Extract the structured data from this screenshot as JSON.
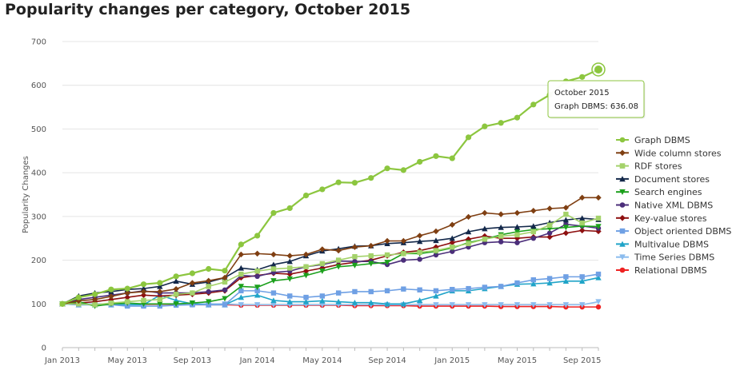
{
  "header": {
    "title": "Popularity changes per category, October 2015"
  },
  "tooltip": {
    "date": "October 2015",
    "text": "Graph DBMS: 636.08"
  },
  "chart_data": {
    "type": "line",
    "title": "Popularity changes per category, October 2015",
    "ylabel": "Popularity Changes",
    "xlabel": "",
    "ylim": [
      0,
      700
    ],
    "y_ticks": [
      0,
      100,
      200,
      300,
      400,
      500,
      600,
      700
    ],
    "x_tick_labels": [
      "Jan 2013",
      "May 2013",
      "Sep 2013",
      "Jan 2014",
      "May 2014",
      "Sep 2014",
      "Jan 2015",
      "May 2015",
      "Sep 2015"
    ],
    "x": [
      "Jan 2013",
      "Feb 2013",
      "Mar 2013",
      "Apr 2013",
      "May 2013",
      "Jun 2013",
      "Jul 2013",
      "Aug 2013",
      "Sep 2013",
      "Oct 2013",
      "Nov 2013",
      "Dec 2013",
      "Jan 2014",
      "Feb 2014",
      "Mar 2014",
      "Apr 2014",
      "May 2014",
      "Jun 2014",
      "Jul 2014",
      "Aug 2014",
      "Sep 2014",
      "Oct 2014",
      "Nov 2014",
      "Dec 2014",
      "Jan 2015",
      "Feb 2015",
      "Mar 2015",
      "Apr 2015",
      "May 2015",
      "Jun 2015",
      "Jul 2015",
      "Aug 2015",
      "Sep 2015",
      "Oct 2015"
    ],
    "grid": true,
    "legend_position": "right",
    "series": [
      {
        "name": "Graph DBMS",
        "color": "#8cc63f",
        "marker": "circle",
        "values": [
          100,
          115,
          122,
          133,
          135,
          145,
          148,
          163,
          170,
          180,
          176,
          236,
          256,
          308,
          319,
          348,
          362,
          378,
          377,
          388,
          410,
          406,
          425,
          438,
          433,
          481,
          506,
          514,
          526,
          556,
          578,
          609,
          619,
          636.08
        ]
      },
      {
        "name": "Wide column stores",
        "color": "#7f3f12",
        "marker": "diamond",
        "values": [
          100,
          107,
          110,
          117,
          125,
          128,
          128,
          134,
          148,
          153,
          160,
          213,
          215,
          213,
          210,
          213,
          225,
          222,
          230,
          233,
          244,
          244,
          256,
          266,
          281,
          299,
          308,
          305,
          308,
          313,
          318,
          320,
          343,
          343
        ]
      },
      {
        "name": "RDF stores",
        "color": "#a4d26a",
        "marker": "square",
        "values": [
          100,
          100,
          98,
          102,
          105,
          108,
          110,
          122,
          125,
          140,
          150,
          168,
          175,
          180,
          182,
          185,
          192,
          200,
          208,
          210,
          212,
          215,
          218,
          222,
          230,
          238,
          248,
          255,
          258,
          265,
          280,
          305,
          285,
          296
        ]
      },
      {
        "name": "Document stores",
        "color": "#13284a",
        "marker": "triangle",
        "values": [
          100,
          118,
          125,
          128,
          133,
          135,
          140,
          152,
          145,
          150,
          160,
          182,
          178,
          190,
          197,
          210,
          221,
          226,
          232,
          233,
          238,
          240,
          243,
          245,
          250,
          265,
          272,
          275,
          276,
          278,
          286,
          292,
          296,
          293
        ]
      },
      {
        "name": "Search engines",
        "color": "#1ca01c",
        "marker": "triangle-down",
        "values": [
          100,
          105,
          95,
          100,
          102,
          100,
          100,
          100,
          102,
          105,
          112,
          140,
          138,
          153,
          157,
          165,
          175,
          185,
          188,
          192,
          195,
          215,
          215,
          220,
          228,
          240,
          248,
          258,
          265,
          270,
          272,
          275,
          278,
          277
        ]
      },
      {
        "name": "Native XML DBMS",
        "color": "#4b2e7a",
        "marker": "circle",
        "values": [
          100,
          110,
          115,
          120,
          125,
          130,
          125,
          125,
          125,
          128,
          132,
          165,
          163,
          172,
          175,
          185,
          190,
          198,
          197,
          197,
          190,
          200,
          202,
          212,
          220,
          230,
          240,
          242,
          240,
          250,
          262,
          282,
          278,
          273
        ]
      },
      {
        "name": "Key-value stores",
        "color": "#8e1010",
        "marker": "diamond",
        "values": [
          100,
          102,
          105,
          110,
          115,
          120,
          118,
          120,
          122,
          125,
          130,
          160,
          165,
          170,
          168,
          175,
          182,
          190,
          195,
          200,
          210,
          218,
          222,
          230,
          240,
          248,
          255,
          250,
          250,
          253,
          253,
          262,
          268,
          266
        ]
      },
      {
        "name": "Object oriented DBMS",
        "color": "#6fa0e4",
        "marker": "square",
        "values": [
          100,
          98,
          98,
          98,
          95,
          95,
          95,
          97,
          98,
          98,
          98,
          130,
          130,
          125,
          118,
          115,
          118,
          125,
          128,
          128,
          130,
          134,
          132,
          130,
          133,
          135,
          138,
          140,
          148,
          155,
          158,
          162,
          162,
          168
        ]
      },
      {
        "name": "Multivalue DBMS",
        "color": "#20a4c8",
        "marker": "triangle",
        "values": [
          100,
          98,
          98,
          98,
          98,
          98,
          120,
          108,
          100,
          98,
          98,
          115,
          120,
          108,
          105,
          105,
          107,
          105,
          103,
          103,
          100,
          100,
          108,
          118,
          130,
          130,
          135,
          140,
          145,
          146,
          148,
          152,
          152,
          160
        ]
      },
      {
        "name": "Time Series DBMS",
        "color": "#8bbcee",
        "marker": "triangle-down",
        "values": [
          100,
          100,
          100,
          100,
          100,
          100,
          100,
          100,
          100,
          100,
          100,
          98,
          98,
          98,
          98,
          98,
          98,
          98,
          98,
          98,
          98,
          98,
          98,
          98,
          98,
          98,
          98,
          98,
          98,
          98,
          98,
          98,
          98,
          105
        ]
      },
      {
        "name": "Relational DBMS",
        "color": "#ee2222",
        "marker": "circle",
        "values": [
          100,
          99,
          99,
          99,
          99,
          99,
          99,
          99,
          98,
          98,
          98,
          97,
          97,
          97,
          97,
          97,
          97,
          97,
          96,
          96,
          96,
          96,
          95,
          95,
          95,
          95,
          95,
          94,
          94,
          94,
          94,
          93,
          93,
          93
        ]
      }
    ]
  }
}
